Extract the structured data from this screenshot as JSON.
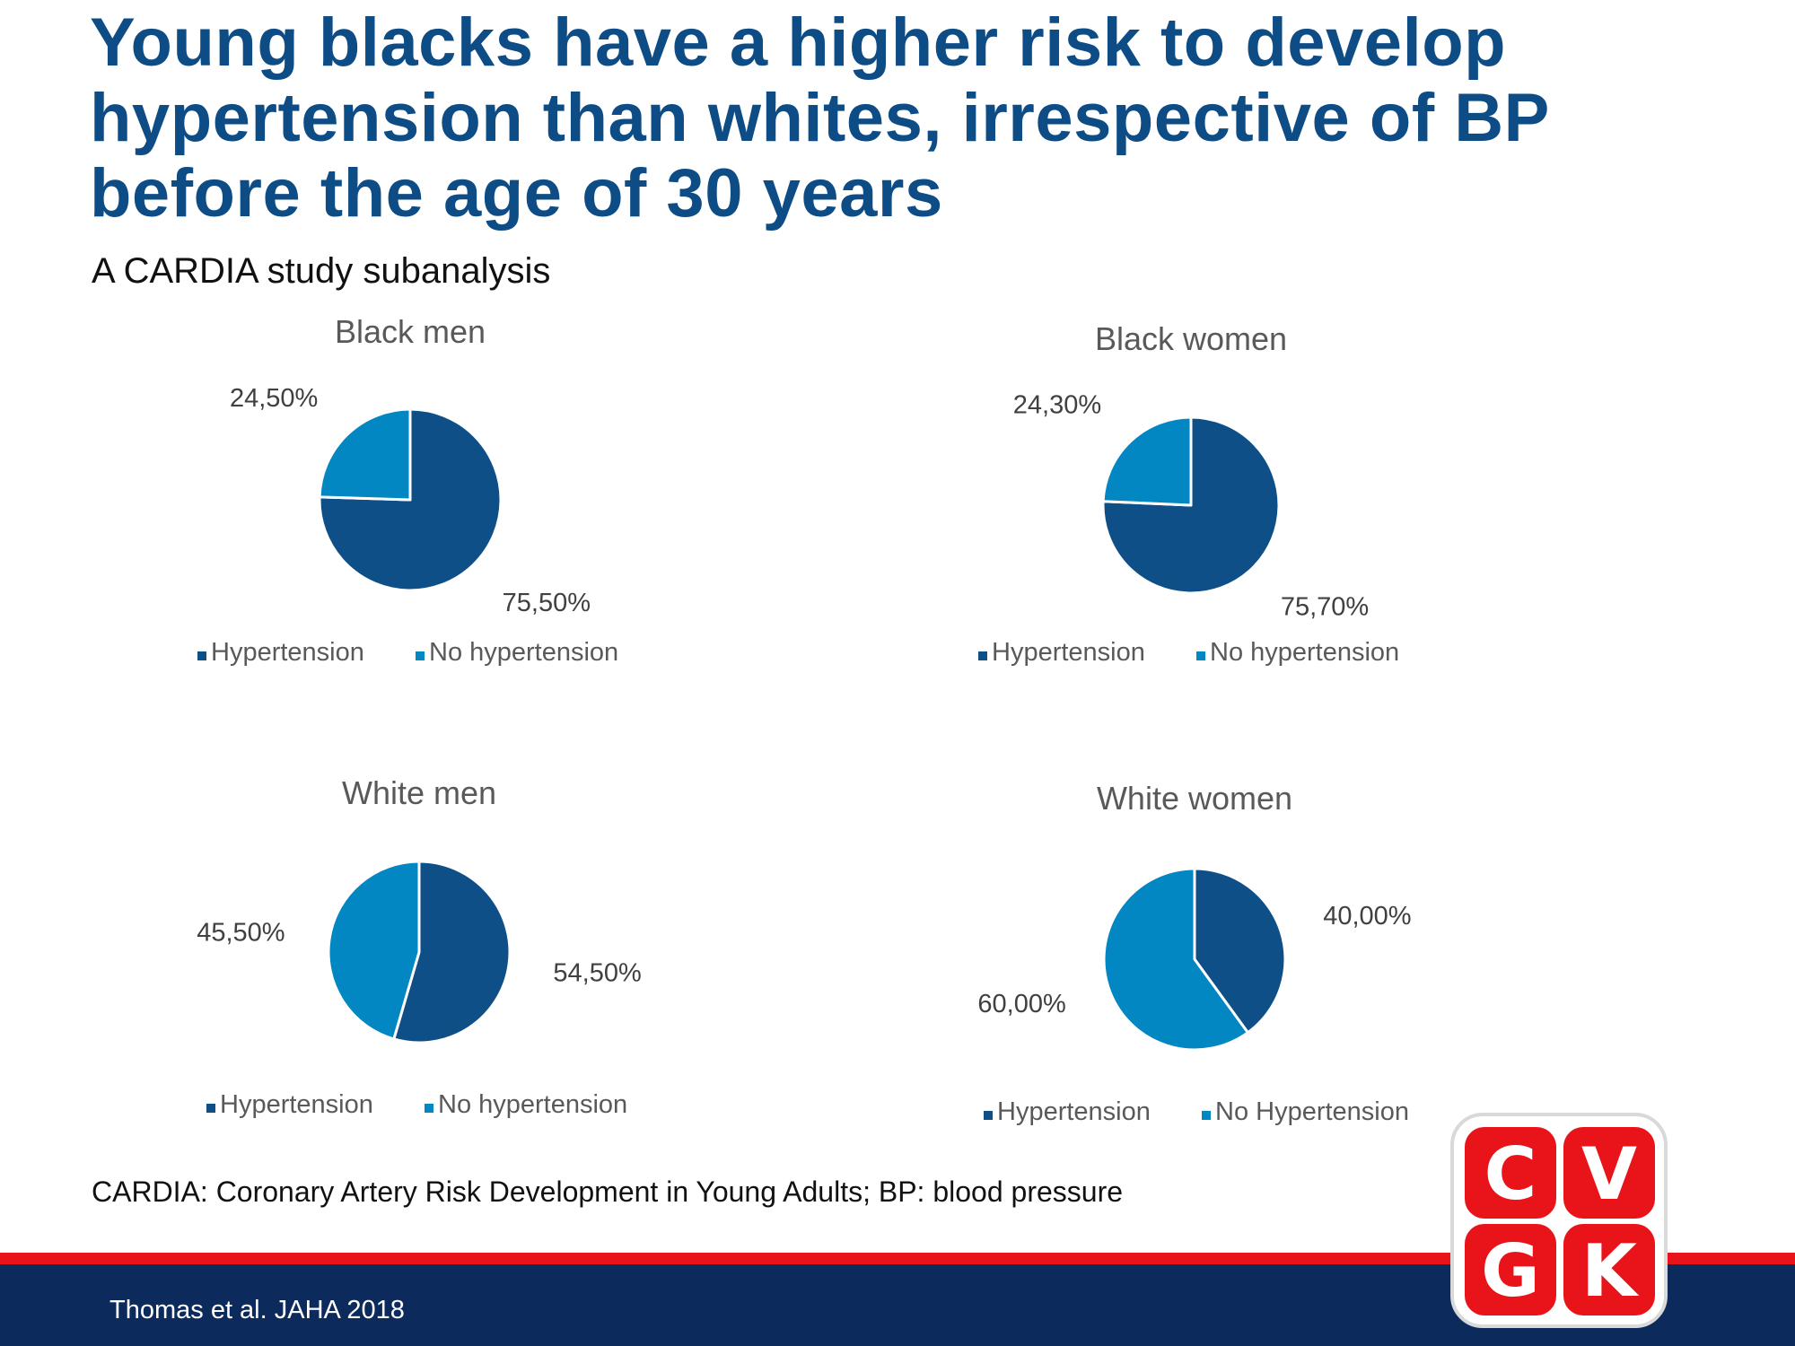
{
  "title_lines": [
    "Young blacks have a higher risk to develop",
    "hypertension than whites, irrespective of BP",
    "before the age of 30 years"
  ],
  "subtitle": "A CARDIA study subanalysis",
  "colors": {
    "hypertension": "#0f4f88",
    "no_hypertension": "#0287c2",
    "title": "#0e4c86",
    "logo_red": "#e8141a"
  },
  "chart_data": [
    {
      "type": "pie",
      "title": "Black men",
      "categories": [
        "Hypertension",
        "No hypertension"
      ],
      "values": [
        75.5,
        24.5
      ],
      "data_labels": [
        "75,50%",
        "24,50%"
      ],
      "legend": [
        "Hypertension",
        "No hypertension"
      ],
      "legend_position": "bottom"
    },
    {
      "type": "pie",
      "title": "Black women",
      "categories": [
        "Hypertension",
        "No hypertension"
      ],
      "values": [
        75.7,
        24.3
      ],
      "data_labels": [
        "75,70%",
        "24,30%"
      ],
      "legend": [
        "Hypertension",
        "No hypertension"
      ],
      "legend_position": "bottom"
    },
    {
      "type": "pie",
      "title": "White men",
      "categories": [
        "Hypertension",
        "No hypertension"
      ],
      "values": [
        54.5,
        45.5
      ],
      "data_labels": [
        "54,50%",
        "45,50%"
      ],
      "legend": [
        "Hypertension",
        "No hypertension"
      ],
      "legend_position": "bottom"
    },
    {
      "type": "pie",
      "title": "White women",
      "categories": [
        "Hypertension",
        "No Hypertension"
      ],
      "values": [
        40.0,
        60.0
      ],
      "data_labels": [
        "40,00%",
        "60,00%"
      ],
      "legend": [
        "Hypertension",
        "No Hypertension"
      ],
      "legend_position": "bottom"
    }
  ],
  "footnote": "CARDIA: Coronary Artery Risk Development in Young Adults; BP: blood pressure",
  "citation": "Thomas et al. JAHA 2018",
  "logo": {
    "letters": [
      "C",
      "V",
      "G",
      "K"
    ],
    "icon": "cvgk-logo-icon"
  }
}
